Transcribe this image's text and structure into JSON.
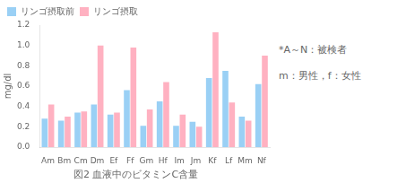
{
  "chart_data": {
    "type": "bar",
    "title": "図2 血液中のビタミンC含量",
    "ylabel": "mg/dl",
    "annotations": [
      "*A～N：被検者",
      "m：男性，f：女性"
    ],
    "categories": [
      "Am",
      "Bm",
      "Cm",
      "Dm",
      "Ef",
      "Ff",
      "Gm",
      "Hf",
      "Im",
      "Jm",
      "Kf",
      "Lf",
      "Mm",
      "Nf"
    ],
    "series": [
      {
        "name": "リンゴ摂取前",
        "values": [
          0.28,
          0.26,
          0.34,
          0.42,
          0.32,
          0.56,
          0.21,
          0.45,
          0.21,
          0.25,
          0.68,
          0.75,
          0.3,
          0.62
        ]
      },
      {
        "name": "リンゴ摂取",
        "values": [
          0.42,
          0.3,
          0.35,
          1.0,
          0.34,
          0.98,
          0.37,
          0.64,
          0.32,
          0.2,
          1.13,
          0.44,
          0.26,
          0.9
        ]
      }
    ],
    "ylim": [
      0,
      1.2
    ],
    "yticks": [
      {
        "value": 0,
        "label": "0.0"
      },
      0.2,
      0.4,
      0.6,
      0.8,
      {
        "value": 1,
        "label": "1.0"
      },
      1.2
    ],
    "grid": false,
    "legend": "upper left"
  }
}
